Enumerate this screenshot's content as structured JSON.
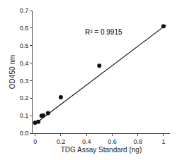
{
  "chart_data": {
    "type": "scatter",
    "xlabel": "TDG Assay Standard (ng)",
    "ylabel": "OD450 nm",
    "annotations": [
      "R² = 0.9915"
    ],
    "series": [
      {
        "type": "line",
        "color": "#111111",
        "line_style": "solid",
        "x": [
          -0.01,
          1.02
        ],
        "values": [
          0.048,
          0.618
        ]
      },
      {
        "type": "scatter",
        "color": "#111111",
        "marker": "circle",
        "x": [
          0.0,
          0.025,
          0.05,
          0.0625,
          0.1,
          0.2,
          0.5,
          1.0
        ],
        "values": [
          0.06,
          0.065,
          0.1,
          0.102,
          0.115,
          0.205,
          0.385,
          0.61
        ]
      }
    ],
    "xlim": [
      -0.02,
      1.05
    ],
    "ylim": [
      0,
      0.7
    ],
    "xticks": [
      0,
      0.2,
      0.4,
      0.6,
      0.8,
      1.0
    ],
    "yticks": [
      {
        "value": 0,
        "label": "0.0"
      },
      0.1,
      0.2,
      0.3,
      0.4,
      0.5,
      0.6,
      0.7
    ],
    "grid": false
  }
}
